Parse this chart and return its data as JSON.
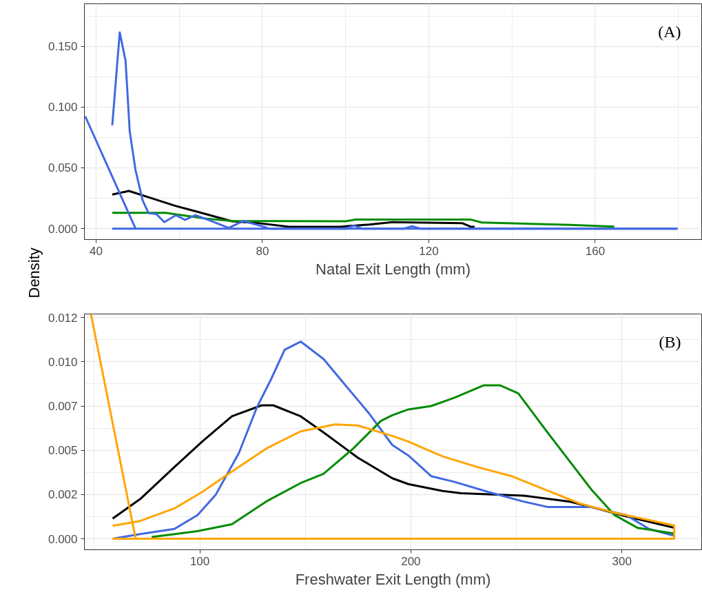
{
  "chart_data": [
    {
      "type": "line",
      "xlabel": "Natal Exit Length (mm)",
      "ylabel": "Density",
      "annotations": [
        "(A)"
      ],
      "xlim": [
        37.2,
        185.6
      ],
      "ylim": [
        -0.009,
        0.185
      ],
      "xticks": [
        40,
        80,
        120,
        160
      ],
      "yticks": [
        {
          "value": 0,
          "label": "0.000"
        },
        {
          "value": 0.05,
          "label": "0.050"
        },
        {
          "value": 0.1,
          "label": "0.100"
        },
        {
          "value": 0.15,
          "label": "0.150"
        }
      ],
      "grid": true,
      "line_style": "solid",
      "marker": "none",
      "series": [
        {
          "color": "#000000",
          "x": [
            43.9,
            47.9,
            53.4,
            58.8,
            64.4,
            72.7,
            79.3,
            86.4,
            99.1,
            105.7,
            111.2,
            128,
            130,
            131
          ],
          "values": [
            0.028,
            0.031,
            0.025,
            0.019,
            0.0138,
            0.006,
            0.0044,
            0.0015,
            0.0017,
            0.0034,
            0.0053,
            0.0045,
            0.0017,
            0.0015
          ]
        },
        {
          "color": "#008b00",
          "x": [
            43.9,
            50,
            56.7,
            66.6,
            72.7,
            100,
            102.4,
            130,
            132.7,
            154,
            164.6
          ],
          "values": [
            0.013,
            0.013,
            0.013,
            0.0081,
            0.0063,
            0.006,
            0.0075,
            0.0075,
            0.005,
            0.003,
            0.0017
          ]
        },
        {
          "color": "#4169e1",
          "x": [
            43.9,
            45.7,
            47.1,
            48.1,
            49.5,
            51.2,
            52.6,
            54.5,
            56.4,
            59.2,
            61.4,
            63.9,
            67.7,
            71.9,
            75.4,
            80.4,
            81.5,
            100,
            102,
            104,
            114,
            116,
            118,
            179.8
          ],
          "values": [
            0.085,
            0.1615,
            0.138,
            0.08,
            0.048,
            0.0233,
            0.0129,
            0.012,
            0.0053,
            0.011,
            0.0072,
            0.011,
            0.0063,
            0.0006,
            0.0063,
            0.0015,
            0,
            0,
            0.0025,
            0,
            0,
            0.002,
            0,
            0
          ]
        },
        {
          "color": "#4169e1",
          "x": [
            37.4,
            49.5
          ],
          "values": [
            0.0924,
            0
          ]
        },
        {
          "color": "#4169e1",
          "x": [
            43.9,
            179.8
          ],
          "values": [
            0,
            0
          ]
        }
      ]
    },
    {
      "type": "line",
      "xlabel": "Freshwater Exit Length (mm)",
      "annotations": [
        "(B)"
      ],
      "xlim": [
        45.3,
        337.8
      ],
      "ylim": [
        -0.00062,
        0.0127
      ],
      "xticks": [
        100,
        200,
        300
      ],
      "yticks": [
        {
          "value": 0,
          "label": "0.000"
        },
        {
          "value": 0.0025,
          "label": "0.002"
        },
        {
          "value": 0.005,
          "label": "0.005"
        },
        {
          "value": 0.0075,
          "label": "0.007"
        },
        {
          "value": 0.01,
          "label": "0.010"
        },
        {
          "value": 0.0125,
          "label": "0.012"
        }
      ],
      "grid": true,
      "line_style": "solid",
      "marker": "none",
      "series": [
        {
          "color": "#000000",
          "x": [
            58.7,
            71.8,
            88,
            101.1,
            115.2,
            129.3,
            134.8,
            147.8,
            158.6,
            174.9,
            191.2,
            198.8,
            215.1,
            223.8,
            253.1,
            274.8,
            285.7,
            302,
            324.8
          ],
          "values": [
            0.00114,
            0.00225,
            0.00406,
            0.00549,
            0.00692,
            0.00754,
            0.00754,
            0.00692,
            0.00601,
            0.00458,
            0.00342,
            0.00309,
            0.0027,
            0.00257,
            0.00244,
            0.00211,
            0.00179,
            0.00127,
            0.00062
          ]
        },
        {
          "color": "#4169e1",
          "x": [
            58.7,
            71.8,
            88,
            98.9,
            107.6,
            118.5,
            127.1,
            133.7,
            140.2,
            147.8,
            158.6,
            169.5,
            180.4,
            191.2,
            198.8,
            209.6,
            220.5,
            236.8,
            253.1,
            265,
            285.7,
            302,
            312.8,
            324.8
          ],
          "values": [
            0,
            0.00027,
            0.00056,
            0.00134,
            0.0025,
            0.00484,
            0.00744,
            0.009,
            0.01068,
            0.01114,
            0.01016,
            0.0086,
            0.00705,
            0.0053,
            0.00471,
            0.00354,
            0.00322,
            0.00264,
            0.00211,
            0.00179,
            0.00179,
            0.00134,
            0.00056,
            0.00017
          ]
        },
        {
          "color": "#008b00",
          "x": [
            77.2,
            98.9,
            115.2,
            131.5,
            147.8,
            158.6,
            172.7,
            185.8,
            191.2,
            198.8,
            209.6,
            220.5,
            234.6,
            242.2,
            250.9,
            263.9,
            274.8,
            285.7,
            296.5,
            307.4,
            324.8
          ],
          "values": [
            0.0001,
            0.00043,
            0.00082,
            0.00211,
            0.00315,
            0.00367,
            0.0051,
            0.00666,
            0.00698,
            0.00731,
            0.0075,
            0.00796,
            0.00867,
            0.00867,
            0.00822,
            0.00614,
            0.00445,
            0.00276,
            0.00134,
            0.00062,
            0.0003
          ]
        },
        {
          "color": "#ffa500",
          "x": [
            58.7,
            71.8,
            88,
            101.1,
            115.2,
            131.5,
            147.8,
            164,
            174.9,
            191.2,
            198.8,
            215.1,
            231.4,
            247.7,
            263.9,
            280.2,
            296.5,
            324.8,
            324.8,
            58.5
          ],
          "values": [
            0.00073,
            0.00101,
            0.00172,
            0.00264,
            0.0038,
            0.0051,
            0.00607,
            0.00646,
            0.0064,
            0.00581,
            0.00549,
            0.00465,
            0.00406,
            0.00354,
            0.00276,
            0.00199,
            0.00147,
            0.00075,
            0,
            0
          ]
        },
        {
          "color": "#ffa500",
          "x": [
            48.4,
            69.6
          ],
          "values": [
            0.0127,
            0
          ]
        }
      ]
    }
  ]
}
